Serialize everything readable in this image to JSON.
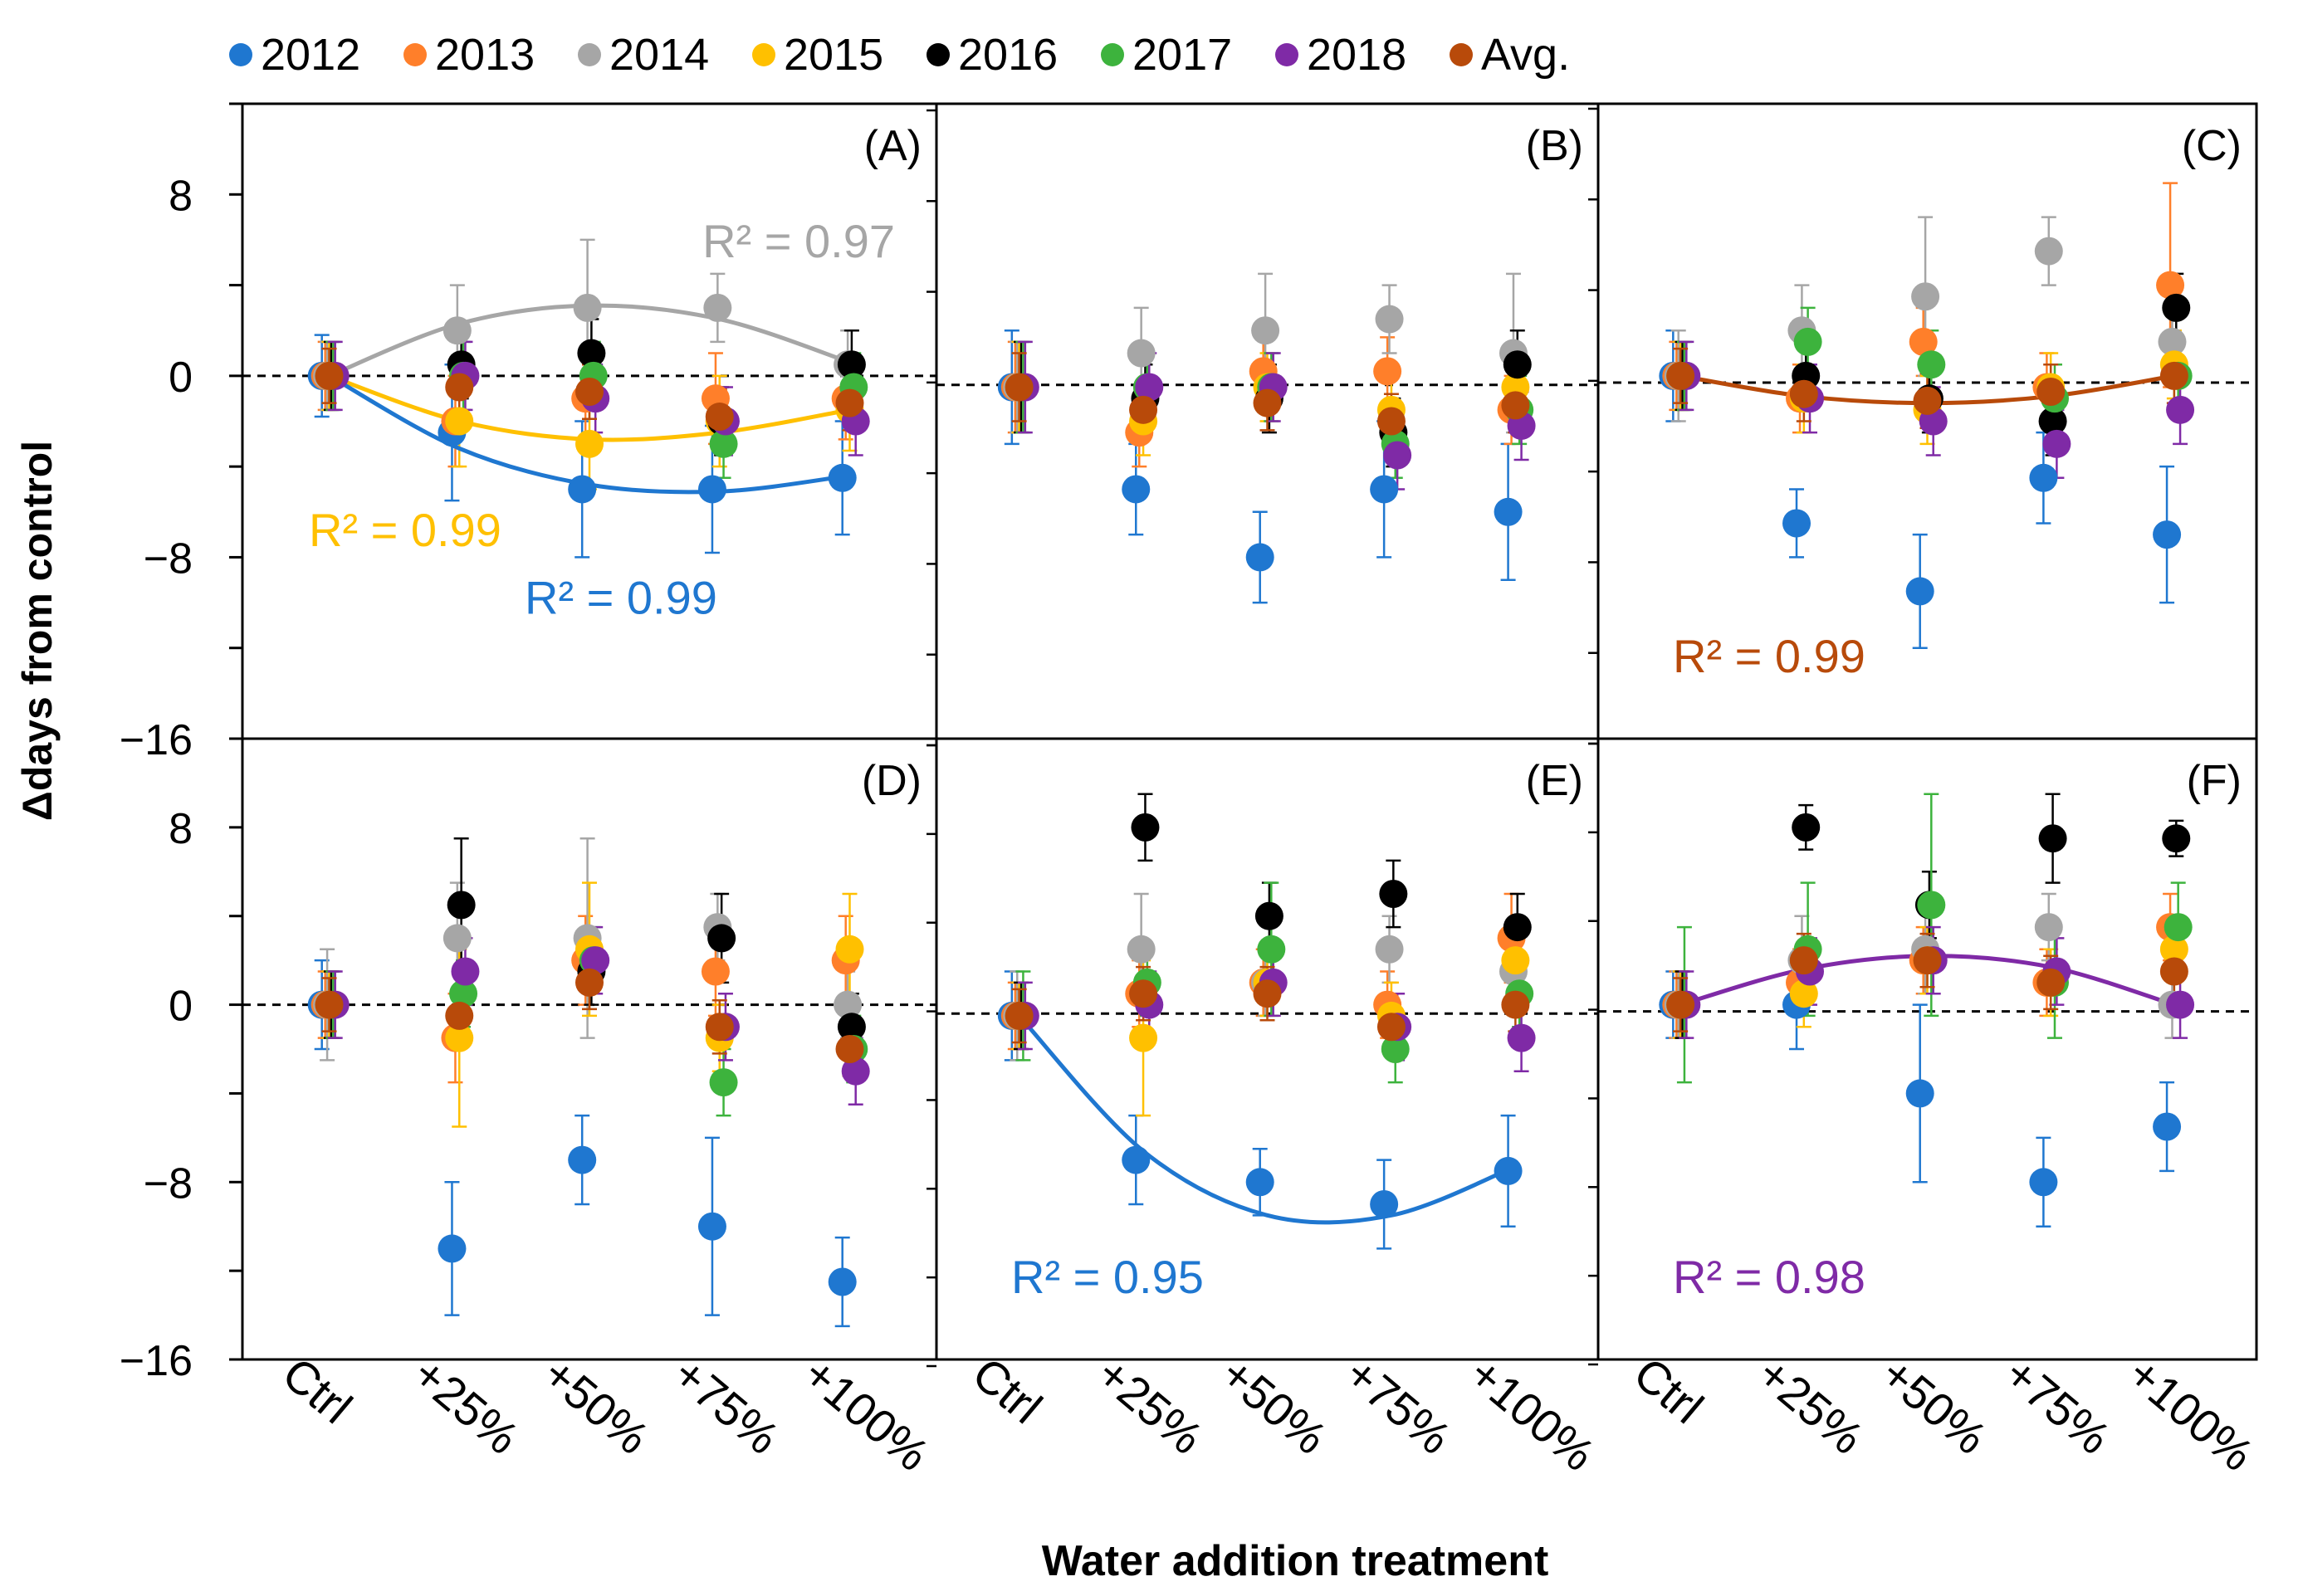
{
  "chart_data": {
    "type": "scatter",
    "legend": [
      {
        "name": "2012",
        "color": "#1f77d0"
      },
      {
        "name": "2013",
        "color": "#ff7f2a"
      },
      {
        "name": "2014",
        "color": "#a6a6a6"
      },
      {
        "name": "2015",
        "color": "#ffc000"
      },
      {
        "name": "2016",
        "color": "#000000"
      },
      {
        "name": "2017",
        "color": "#3db33d"
      },
      {
        "name": "2018",
        "color": "#7f2aa6"
      },
      {
        "name": "Avg.",
        "color": "#b84a0a"
      }
    ],
    "ylabel": "Δdays from control",
    "xlabel": "Water addition treatment",
    "categories": [
      "Ctrl",
      "+25%",
      "+50%",
      "+75%",
      "+100%"
    ],
    "ylim": [
      -16,
      12
    ],
    "yticks": [
      8,
      0,
      -8,
      -16
    ],
    "ytick_labels": [
      "8",
      "0",
      "−8",
      "−16"
    ],
    "panels": [
      {
        "label": "(A)",
        "dash_y": 0,
        "series": [
          {
            "name": "2012",
            "values": [
              0,
              -2.5,
              -5,
              -5,
              -4.5
            ],
            "err": [
              1.8,
              3,
              3,
              2.8,
              2.5
            ]
          },
          {
            "name": "2013",
            "values": [
              0,
              -2,
              -1,
              -1,
              -1
            ],
            "err": [
              1.5,
              2,
              2,
              2,
              1.8
            ]
          },
          {
            "name": "2014",
            "values": [
              0,
              2,
              3,
              3,
              0.5
            ],
            "err": [
              1.5,
              2,
              3,
              1.5,
              1.5
            ]
          },
          {
            "name": "2015",
            "values": [
              0,
              -2,
              -3,
              -2,
              -1.5
            ],
            "err": [
              1.5,
              2,
              2,
              2,
              1.8
            ]
          },
          {
            "name": "2016",
            "values": [
              0,
              0.5,
              1,
              -2,
              0.5
            ],
            "err": [
              1.5,
              1.5,
              1.5,
              1.5,
              1.5
            ]
          },
          {
            "name": "2017",
            "values": [
              0,
              0,
              0,
              -3,
              -0.5
            ],
            "err": [
              1.5,
              1.5,
              1.5,
              1.5,
              1.5
            ]
          },
          {
            "name": "2018",
            "values": [
              0,
              0,
              -1,
              -2,
              -2
            ],
            "err": [
              1.5,
              1.5,
              1.5,
              1.5,
              1.5
            ]
          },
          {
            "name": "Avg.",
            "values": [
              0,
              -0.5,
              -0.7,
              -1.8,
              -1.2
            ],
            "err": [
              1.2,
              1.2,
              1.2,
              1.2,
              1.2
            ]
          }
        ],
        "fits": [
          {
            "series": "2014",
            "values": [
              0,
              2.3,
              3.1,
              2.5,
              0.6
            ],
            "r2": "R² = 0.97",
            "label_pos": "top-right"
          },
          {
            "series": "2015",
            "values": [
              0,
              -2,
              -2.8,
              -2.5,
              -1.5
            ],
            "r2": "R² = 0.99",
            "label_pos": "left"
          },
          {
            "series": "2012",
            "values": [
              0,
              -3.2,
              -4.8,
              -5.1,
              -4.4
            ],
            "r2": "R² = 0.99",
            "label_pos": "bottom-center"
          }
        ]
      },
      {
        "label": "(B)",
        "dash_y": -0.4,
        "series": [
          {
            "name": "2012",
            "values": [
              -0.5,
              -5,
              -8,
              -5,
              -6
            ],
            "err": [
              2.5,
              2,
              2,
              3,
              3
            ]
          },
          {
            "name": "2013",
            "values": [
              -0.5,
              -2.5,
              0.2,
              0.2,
              -1.5
            ],
            "err": [
              2,
              1.5,
              1.5,
              1.5,
              1.5
            ]
          },
          {
            "name": "2014",
            "values": [
              -0.5,
              1,
              2,
              2.5,
              1
            ],
            "err": [
              2,
              2,
              2.5,
              1.5,
              3.5
            ]
          },
          {
            "name": "2015",
            "values": [
              -0.5,
              -2,
              -0.5,
              -1.5,
              -0.5
            ],
            "err": [
              2,
              1.5,
              1.5,
              1.5,
              1.5
            ]
          },
          {
            "name": "2016",
            "values": [
              -0.5,
              -1,
              -1,
              -2.5,
              0.5
            ],
            "err": [
              2,
              1.5,
              1.5,
              1.5,
              1.5
            ]
          },
          {
            "name": "2017",
            "values": [
              -0.5,
              -0.5,
              -0.5,
              -3,
              -1.5
            ],
            "err": [
              2,
              1.5,
              1.5,
              1.5,
              1.5
            ]
          },
          {
            "name": "2018",
            "values": [
              -0.5,
              -0.5,
              -0.5,
              -3.5,
              -2.2
            ],
            "err": [
              2,
              1.5,
              1.5,
              1.5,
              1.5
            ]
          },
          {
            "name": "Avg.",
            "values": [
              -0.5,
              -1.5,
              -1.2,
              -2,
              -1.3
            ],
            "err": [
              1.5,
              1.2,
              1.2,
              1.2,
              1.2
            ]
          }
        ],
        "fits": []
      },
      {
        "label": "(C)",
        "dash_y": -0.3,
        "series": [
          {
            "name": "2012",
            "values": [
              0,
              -6.5,
              -9.5,
              -4.5,
              -7
            ],
            "err": [
              2,
              1.5,
              2.5,
              2,
              3
            ]
          },
          {
            "name": "2013",
            "values": [
              0,
              -1,
              1.5,
              -0.5,
              4
            ],
            "err": [
              1.5,
              1.5,
              1.5,
              1.5,
              4.5
            ]
          },
          {
            "name": "2014",
            "values": [
              0,
              2,
              3.5,
              5.5,
              1.5
            ],
            "err": [
              2,
              2,
              3.5,
              1.5,
              1.5
            ]
          },
          {
            "name": "2015",
            "values": [
              0,
              -1,
              -1.5,
              -0.5,
              0.5
            ],
            "err": [
              1.5,
              1.5,
              1.5,
              1.5,
              1.5
            ]
          },
          {
            "name": "2016",
            "values": [
              0,
              0,
              -1,
              -2,
              3
            ],
            "err": [
              1.5,
              1.5,
              1.5,
              1.5,
              1.5
            ]
          },
          {
            "name": "2017",
            "values": [
              0,
              1.5,
              0.5,
              -1,
              0
            ],
            "err": [
              1.5,
              1.5,
              1.5,
              1.5,
              1.5
            ]
          },
          {
            "name": "2018",
            "values": [
              0,
              -1,
              -2,
              -3,
              -1.5
            ],
            "err": [
              1.5,
              1.5,
              1.5,
              1.5,
              1.5
            ]
          },
          {
            "name": "Avg.",
            "values": [
              0,
              -0.8,
              -1.1,
              -0.7,
              0
            ],
            "err": [
              1.2,
              1.2,
              1.2,
              1.2,
              1.2
            ]
          }
        ],
        "fits": [
          {
            "series": "Avg.",
            "values": [
              0,
              -0.9,
              -1.2,
              -0.9,
              0
            ],
            "r2": "R² = 0.99",
            "label_pos": "bottom-left"
          }
        ]
      },
      {
        "label": "(D)",
        "dash_y": 0,
        "series": [
          {
            "name": "2012",
            "values": [
              0,
              -11,
              -7,
              -10,
              -12.5
            ],
            "err": [
              2,
              3,
              2,
              4,
              2
            ]
          },
          {
            "name": "2013",
            "values": [
              0,
              -1.5,
              2,
              1.5,
              2
            ],
            "err": [
              1.5,
              2,
              2,
              2,
              2
            ]
          },
          {
            "name": "2014",
            "values": [
              0,
              3,
              3,
              3.5,
              0
            ],
            "err": [
              2.5,
              2.5,
              4.5,
              1.5,
              1.5
            ]
          },
          {
            "name": "2015",
            "values": [
              0,
              -1.5,
              2.5,
              -1.5,
              2.5
            ],
            "err": [
              1.5,
              4,
              3,
              1.5,
              2.5
            ]
          },
          {
            "name": "2016",
            "values": [
              0,
              4.5,
              1.5,
              3,
              -1
            ],
            "err": [
              1.5,
              3,
              1.5,
              2,
              1.5
            ]
          },
          {
            "name": "2017",
            "values": [
              0,
              0.5,
              2,
              -3.5,
              -2
            ],
            "err": [
              1.5,
              1.5,
              1.5,
              1.5,
              1.5
            ]
          },
          {
            "name": "2018",
            "values": [
              0,
              1.5,
              2,
              -1,
              -3
            ],
            "err": [
              1.5,
              1.5,
              1.5,
              1.5,
              1.5
            ]
          },
          {
            "name": "Avg.",
            "values": [
              0,
              -0.5,
              1,
              -1,
              -2
            ],
            "err": [
              1.2,
              1.2,
              1.2,
              1.2,
              1.2
            ]
          }
        ],
        "fits": []
      },
      {
        "label": "(E)",
        "dash_y": -0.4,
        "series": [
          {
            "name": "2012",
            "values": [
              -0.5,
              -7,
              -8,
              -9,
              -7.5
            ],
            "err": [
              2,
              2,
              1.5,
              2,
              2.5
            ]
          },
          {
            "name": "2013",
            "values": [
              -0.5,
              0.5,
              1,
              0,
              3
            ],
            "err": [
              1.5,
              1.5,
              1.5,
              1.5,
              2
            ]
          },
          {
            "name": "2014",
            "values": [
              -0.5,
              2.5,
              1,
              2.5,
              1.5
            ],
            "err": [
              2,
              2.5,
              1.5,
              1.5,
              1.5
            ]
          },
          {
            "name": "2015",
            "values": [
              -0.5,
              -1.5,
              1,
              -0.5,
              2
            ],
            "err": [
              1.5,
              3.5,
              1.5,
              1.5,
              1.5
            ]
          },
          {
            "name": "2016",
            "values": [
              -0.5,
              8,
              4,
              5,
              3.5
            ],
            "err": [
              1.5,
              1.5,
              1.5,
              1.5,
              1.5
            ]
          },
          {
            "name": "2017",
            "values": [
              -0.5,
              1,
              2.5,
              -2,
              0.5
            ],
            "err": [
              2,
              1.5,
              3,
              1.5,
              1.5
            ]
          },
          {
            "name": "2018",
            "values": [
              -0.5,
              0,
              1,
              -1,
              -1.5
            ],
            "err": [
              1.5,
              1.5,
              1.5,
              1.5,
              1.5
            ]
          },
          {
            "name": "Avg.",
            "values": [
              -0.5,
              0.5,
              0.5,
              -1,
              0
            ],
            "err": [
              1.2,
              1.2,
              1.2,
              1.2,
              1.2
            ]
          }
        ],
        "fits": [
          {
            "series": "2012",
            "values": [
              -0.5,
              -6.6,
              -9.5,
              -9.5,
              -7.3
            ],
            "r2": "R² = 0.95",
            "label_pos": "bottom-left"
          }
        ]
      },
      {
        "label": "(F)",
        "dash_y": -0.3,
        "series": [
          {
            "name": "2012",
            "values": [
              0,
              0,
              -4,
              -8,
              -5.5
            ],
            "err": [
              1.5,
              2,
              4,
              2,
              2
            ]
          },
          {
            "name": "2013",
            "values": [
              0,
              1,
              2,
              1,
              3.5
            ],
            "err": [
              1.5,
              1.5,
              1.5,
              1.5,
              1.5
            ]
          },
          {
            "name": "2014",
            "values": [
              0,
              2,
              2.5,
              3.5,
              0
            ],
            "err": [
              1.5,
              2,
              2,
              1.5,
              1.5
            ]
          },
          {
            "name": "2015",
            "values": [
              0,
              0.5,
              2,
              1,
              2.5
            ],
            "err": [
              1.5,
              1.5,
              1.5,
              1.5,
              1.5
            ]
          },
          {
            "name": "2016",
            "values": [
              0,
              8,
              4.5,
              7.5,
              7.5
            ],
            "err": [
              1.5,
              1,
              1.5,
              2,
              0.8
            ]
          },
          {
            "name": "2017",
            "values": [
              0,
              2.5,
              4.5,
              1,
              3.5
            ],
            "err": [
              3.5,
              3,
              5,
              2.5,
              2
            ]
          },
          {
            "name": "2018",
            "values": [
              0,
              1.5,
              2,
              1.5,
              0
            ],
            "err": [
              1.5,
              1.5,
              1.5,
              1.5,
              1.5
            ]
          },
          {
            "name": "Avg.",
            "values": [
              0,
              2,
              2,
              1,
              1.5
            ],
            "err": [
              1.2,
              1.2,
              1.2,
              1.2,
              1.2
            ]
          }
        ],
        "fits": [
          {
            "series": "2018",
            "values": [
              0,
              1.6,
              2.2,
              1.7,
              0
            ],
            "r2": "R² = 0.98",
            "label_pos": "bottom-left"
          }
        ]
      }
    ]
  }
}
